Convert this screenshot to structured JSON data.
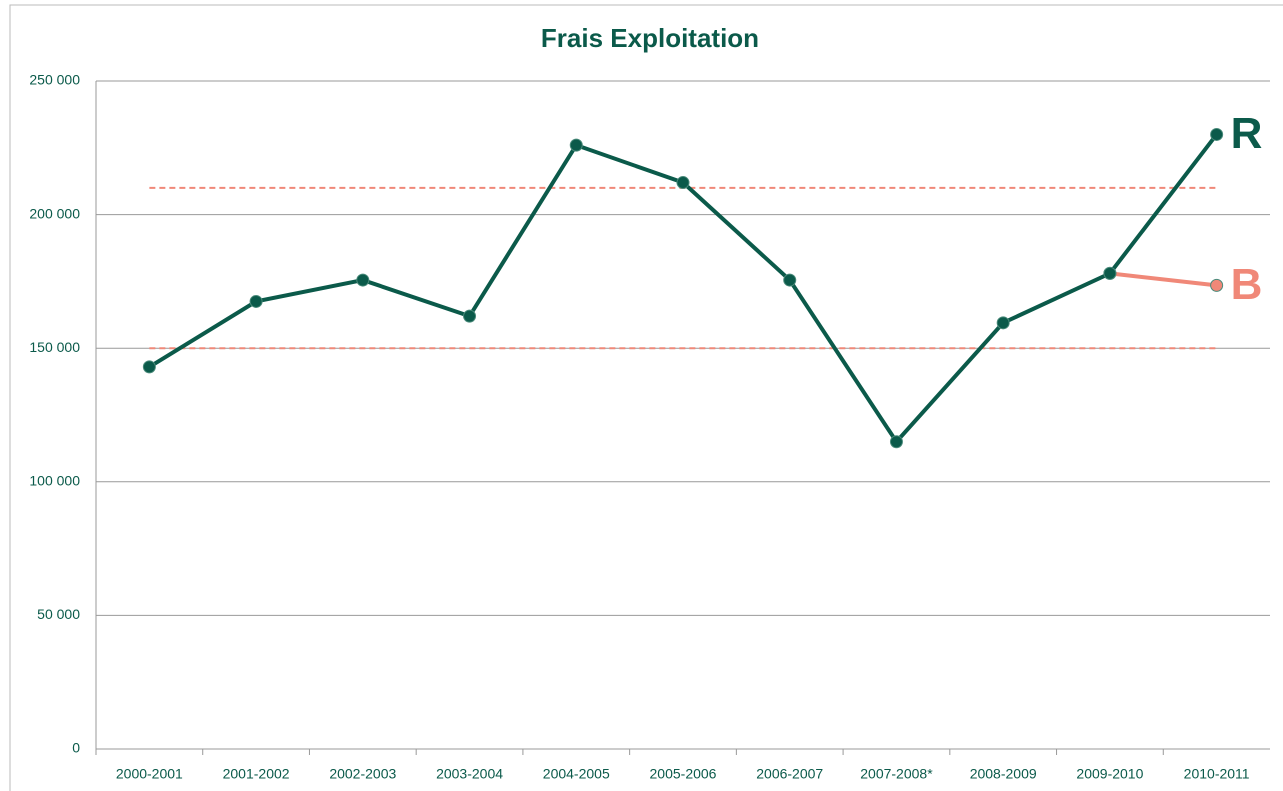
{
  "chart_data": {
    "type": "line",
    "title": "Frais Exploitation",
    "categories": [
      "2000-2001",
      "2001-2002",
      "2002-2003",
      "2003-2004",
      "2004-2005",
      "2005-2006",
      "2006-2007",
      "2007-2008*",
      "2008-2009",
      "2009-2010",
      "2010-2011"
    ],
    "series": [
      {
        "name": "B",
        "color": "#f08878",
        "values": [
          null,
          null,
          null,
          null,
          null,
          null,
          null,
          null,
          null,
          178000,
          173500
        ]
      },
      {
        "name": "R",
        "color": "#0b5a4a",
        "values": [
          143000,
          167500,
          175500,
          162000,
          226000,
          212000,
          175500,
          115000,
          159500,
          178000,
          230000
        ]
      }
    ],
    "reference_lines": [
      210000,
      150000
    ],
    "reference_color": "#f08878",
    "ylim": [
      0,
      250000
    ],
    "yticks": [
      0,
      {
        "value": 50000,
        "label": "50 000"
      },
      {
        "value": 100000,
        "label": "100 000"
      },
      {
        "value": 150000,
        "label": "150 000"
      },
      {
        "value": 200000,
        "label": "200 000"
      },
      {
        "value": 250000,
        "label": "250 000"
      }
    ],
    "grid": true
  }
}
